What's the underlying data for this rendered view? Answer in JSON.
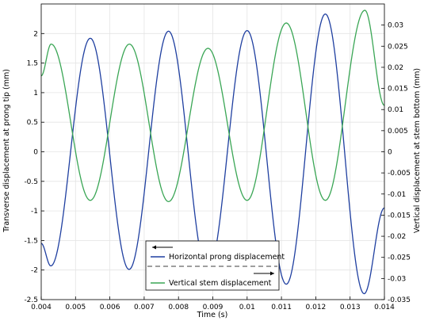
{
  "chart_data": {
    "type": "line",
    "xlabel": "Time (s)",
    "ylabel_left": "Transverse displacement at prong tip (mm)",
    "ylabel_right": "Vertical displacement at stem bottom (mm)",
    "xlim": [
      0.004,
      0.014
    ],
    "ylim_left": [
      -2.5,
      2.5
    ],
    "ylim_right": [
      -0.035,
      0.035
    ],
    "x_ticks": [
      "0.004",
      "0.005",
      "0.006",
      "0.007",
      "0.008",
      "0.009",
      "0.01",
      "0.011",
      "0.012",
      "0.013",
      "0.014"
    ],
    "y_left_ticks": [
      "-2.5",
      "-2",
      "-1.5",
      "-1",
      "-0.5",
      "0",
      "0.5",
      "1",
      "1.5",
      "2"
    ],
    "y_right_ticks": [
      "-0.035",
      "-0.03",
      "-0.025",
      "-0.02",
      "-0.015",
      "-0.01",
      "-0.005",
      "0",
      "0.005",
      "0.01",
      "0.015",
      "0.02",
      "0.025",
      "0.03"
    ],
    "grid": true,
    "legend_position": "bottom-center",
    "series": [
      {
        "name": "Horizontal prong displacement",
        "axis": "left",
        "color": "#1f3fa0",
        "legend_arrow": "left",
        "extrema": [
          [
            0.004,
            -1.55
          ],
          [
            0.00428,
            -1.93
          ],
          [
            0.00543,
            1.92
          ],
          [
            0.00656,
            -1.99
          ],
          [
            0.00771,
            2.04
          ],
          [
            0.00885,
            -2.05
          ],
          [
            0.01,
            2.05
          ],
          [
            0.01114,
            -2.24
          ],
          [
            0.01228,
            2.33
          ],
          [
            0.01341,
            -2.4
          ],
          [
            0.014,
            -0.95
          ]
        ]
      },
      {
        "name": "Vertical stem displacement",
        "axis": "right",
        "color": "#3aa655",
        "legend_arrow": "right",
        "extrema": [
          [
            0.004,
            0.018
          ],
          [
            0.00429,
            0.0255
          ],
          [
            0.00543,
            -0.0115
          ],
          [
            0.00657,
            0.0255
          ],
          [
            0.00771,
            -0.0118
          ],
          [
            0.00886,
            0.0245
          ],
          [
            0.01,
            -0.0115
          ],
          [
            0.01114,
            0.0305
          ],
          [
            0.01228,
            -0.0115
          ],
          [
            0.01343,
            0.0335
          ],
          [
            0.014,
            0.011
          ]
        ]
      }
    ]
  }
}
